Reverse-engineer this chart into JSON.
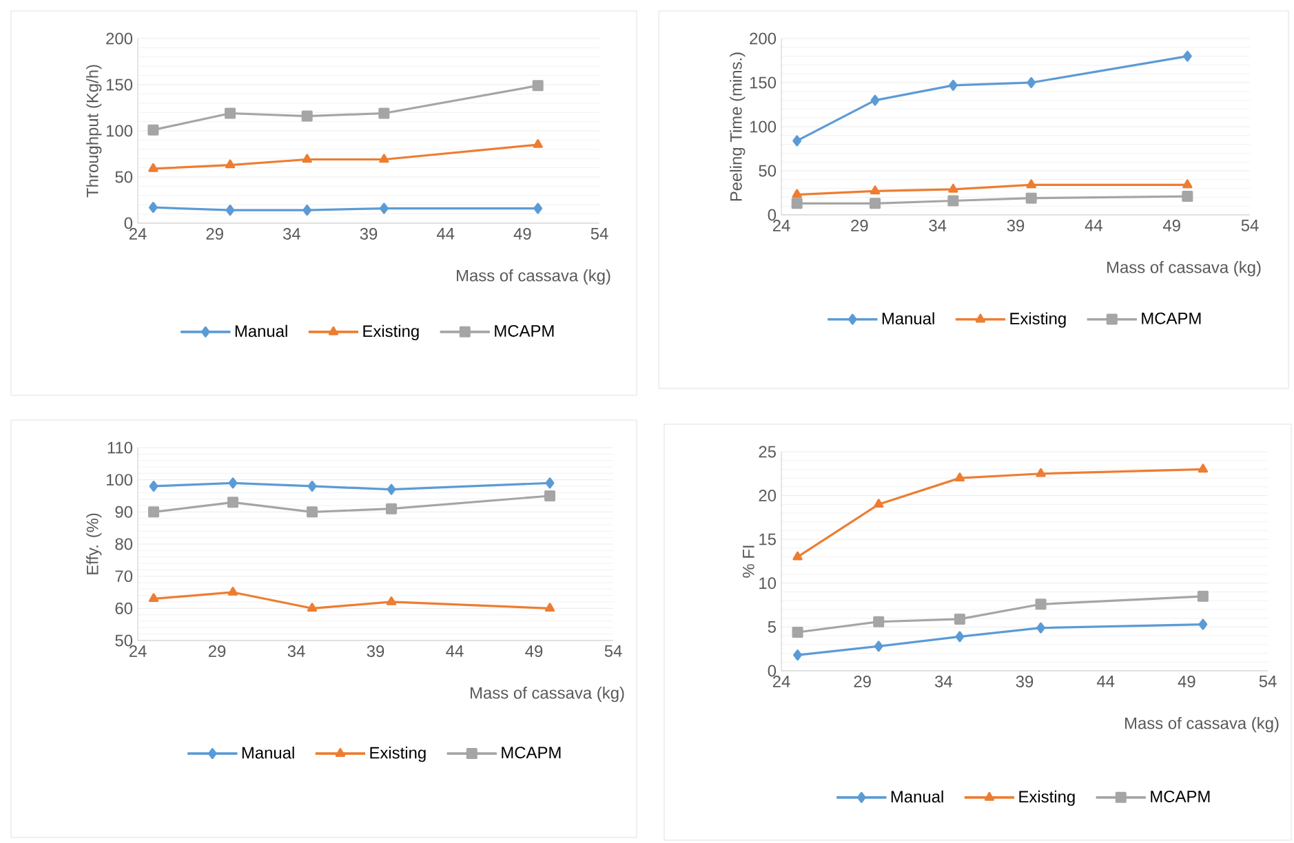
{
  "chart_data": [
    {
      "type": "line",
      "xlabel": "Mass of cassava (kg)",
      "ylabel": "Throughput  (Kg/h)",
      "x": [
        25,
        30,
        35,
        40,
        50
      ],
      "xlim": [
        24,
        54
      ],
      "xticks": [
        24,
        29,
        34,
        39,
        44,
        49,
        54
      ],
      "ylim": [
        0,
        200
      ],
      "yticks": [
        0,
        50,
        100,
        150,
        200
      ],
      "grid": "y",
      "legend": "bottom",
      "line_style": "solid",
      "series": [
        {
          "name": "Manual",
          "color": "#5b9bd5",
          "marker": "diamond",
          "values": [
            17,
            14,
            14,
            16,
            16
          ]
        },
        {
          "name": "Existing",
          "color": "#ed7d31",
          "marker": "triangle",
          "values": [
            59,
            63,
            69,
            69,
            85
          ]
        },
        {
          "name": "MCAPM",
          "color": "#a5a5a5",
          "marker": "square",
          "values": [
            101,
            119,
            116,
            119,
            149
          ]
        }
      ]
    },
    {
      "type": "line",
      "xlabel": "Mass of cassava (kg)",
      "ylabel": "Peeling Time (mins.)",
      "x": [
        25,
        30,
        35,
        40,
        50
      ],
      "xlim": [
        24,
        54
      ],
      "xticks": [
        24,
        29,
        34,
        39,
        44,
        49,
        54
      ],
      "ylim": [
        0,
        200
      ],
      "yticks": [
        0,
        50,
        100,
        150,
        200
      ],
      "grid": "y",
      "legend": "bottom",
      "line_style": "solid",
      "series": [
        {
          "name": "Manual",
          "color": "#5b9bd5",
          "marker": "diamond",
          "values": [
            84,
            130,
            147,
            150,
            180
          ]
        },
        {
          "name": "Existing",
          "color": "#ed7d31",
          "marker": "triangle",
          "values": [
            23,
            27,
            29,
            34,
            34
          ]
        },
        {
          "name": "MCAPM",
          "color": "#a5a5a5",
          "marker": "square",
          "values": [
            13,
            13,
            16,
            19,
            21
          ]
        }
      ]
    },
    {
      "type": "line",
      "xlabel": "Mass of cassava (kg)",
      "ylabel": "Effy. (%)",
      "x": [
        25,
        30,
        35,
        40,
        50
      ],
      "xlim": [
        24,
        54
      ],
      "xticks": [
        24,
        29,
        34,
        39,
        44,
        49,
        54
      ],
      "ylim": [
        50,
        110
      ],
      "yticks": [
        50,
        60,
        70,
        80,
        90,
        100,
        110
      ],
      "grid": "y",
      "legend": "bottom",
      "line_style": "solid",
      "series": [
        {
          "name": "Manual",
          "color": "#5b9bd5",
          "marker": "diamond",
          "values": [
            98,
            99,
            98,
            97,
            99
          ]
        },
        {
          "name": "Existing",
          "color": "#ed7d31",
          "marker": "triangle",
          "values": [
            63,
            65,
            60,
            62,
            60
          ]
        },
        {
          "name": "MCAPM",
          "color": "#a5a5a5",
          "marker": "square",
          "values": [
            90,
            93,
            90,
            91,
            95
          ]
        }
      ]
    },
    {
      "type": "line",
      "xlabel": "Mass of cassava (kg)",
      "ylabel": "% FI",
      "x": [
        25,
        30,
        35,
        40,
        50
      ],
      "xlim": [
        24,
        54
      ],
      "xticks": [
        24,
        29,
        34,
        39,
        44,
        49,
        54
      ],
      "ylim": [
        0,
        25
      ],
      "yticks": [
        0,
        5,
        10,
        15,
        20,
        25
      ],
      "grid": "y",
      "legend": "bottom",
      "line_style": "solid",
      "series": [
        {
          "name": "Manual",
          "color": "#5b9bd5",
          "marker": "diamond",
          "values": [
            1.8,
            2.8,
            3.9,
            4.9,
            5.3
          ]
        },
        {
          "name": "Existing",
          "color": "#ed7d31",
          "marker": "triangle",
          "values": [
            13,
            19,
            22,
            22.5,
            23
          ]
        },
        {
          "name": "MCAPM",
          "color": "#a5a5a5",
          "marker": "square",
          "values": [
            4.4,
            5.6,
            5.9,
            7.6,
            8.5
          ]
        }
      ]
    }
  ]
}
